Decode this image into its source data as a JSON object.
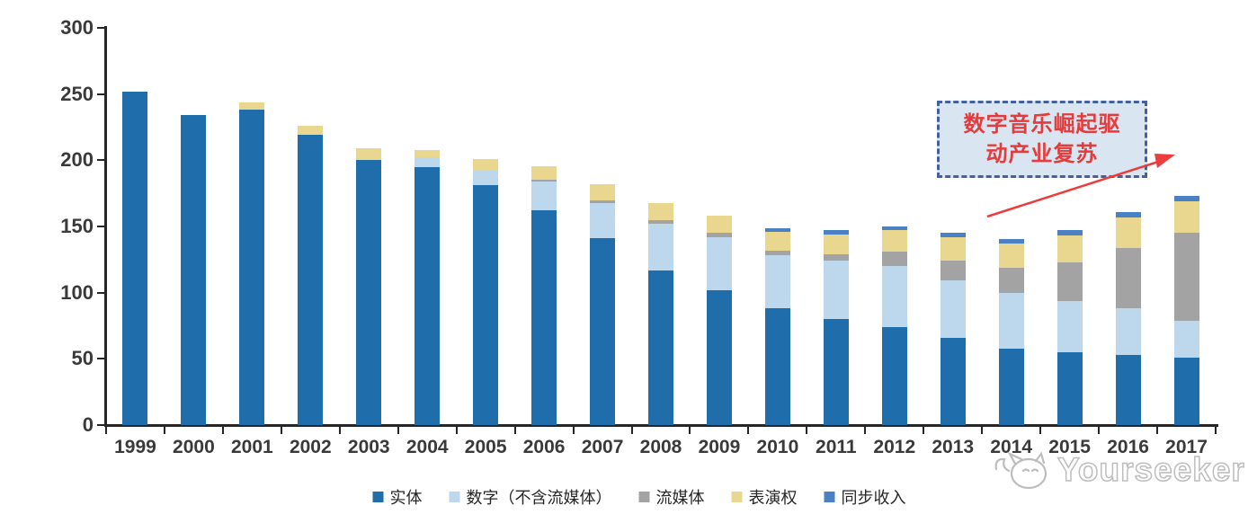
{
  "chart_data": {
    "type": "bar",
    "stacked": true,
    "categories": [
      "1999",
      "2000",
      "2001",
      "2002",
      "2003",
      "2004",
      "2005",
      "2006",
      "2007",
      "2008",
      "2009",
      "2010",
      "2011",
      "2012",
      "2013",
      "2014",
      "2015",
      "2016",
      "2017"
    ],
    "series": [
      {
        "name": "实体",
        "color": "#1f6dab",
        "values": [
          252,
          234,
          238,
          219,
          200,
          195,
          181,
          162,
          141,
          117,
          102,
          88,
          80,
          74,
          66,
          58,
          55,
          53,
          51
        ]
      },
      {
        "name": "数字（不含流媒体）",
        "color": "#bdd7ec",
        "values": [
          0,
          0,
          0,
          0,
          0,
          7,
          12,
          22,
          27,
          35,
          40,
          40,
          44,
          46,
          43,
          42,
          39,
          35,
          28
        ]
      },
      {
        "name": "流媒体",
        "color": "#a3a3a3",
        "values": [
          0,
          0,
          0,
          0,
          0,
          0,
          0,
          1.5,
          2,
          3,
          3,
          4,
          5,
          11,
          15,
          19,
          29,
          46,
          66
        ]
      },
      {
        "name": "表演权",
        "color": "#e9d78f",
        "values": [
          0,
          0,
          6,
          7,
          9,
          6,
          8,
          10,
          12,
          13,
          13,
          14,
          15,
          16,
          18,
          18,
          20,
          23,
          24
        ]
      },
      {
        "name": "同步收入",
        "color": "#4a80c4",
        "values": [
          0,
          0,
          0,
          0,
          0,
          0,
          0,
          0,
          0,
          0,
          0,
          3,
          3,
          3,
          3,
          3.5,
          4,
          4,
          4
        ]
      }
    ],
    "ylim": [
      0,
      300
    ],
    "yticks": [
      "0",
      "50",
      "100",
      "150",
      "200",
      "250",
      "300"
    ],
    "grid": false,
    "legend_position": "bottom-center"
  },
  "annotation": {
    "line1": "数字音乐崛起驱",
    "line2": "动产业复苏",
    "text_color": "#e23c3c",
    "box_fill": "#d9e5f1",
    "box_border": "#44609e",
    "arrow_color": "#ee3b3b"
  },
  "watermark": {
    "text": "Yourseeker",
    "color": "#bdbdbd"
  }
}
